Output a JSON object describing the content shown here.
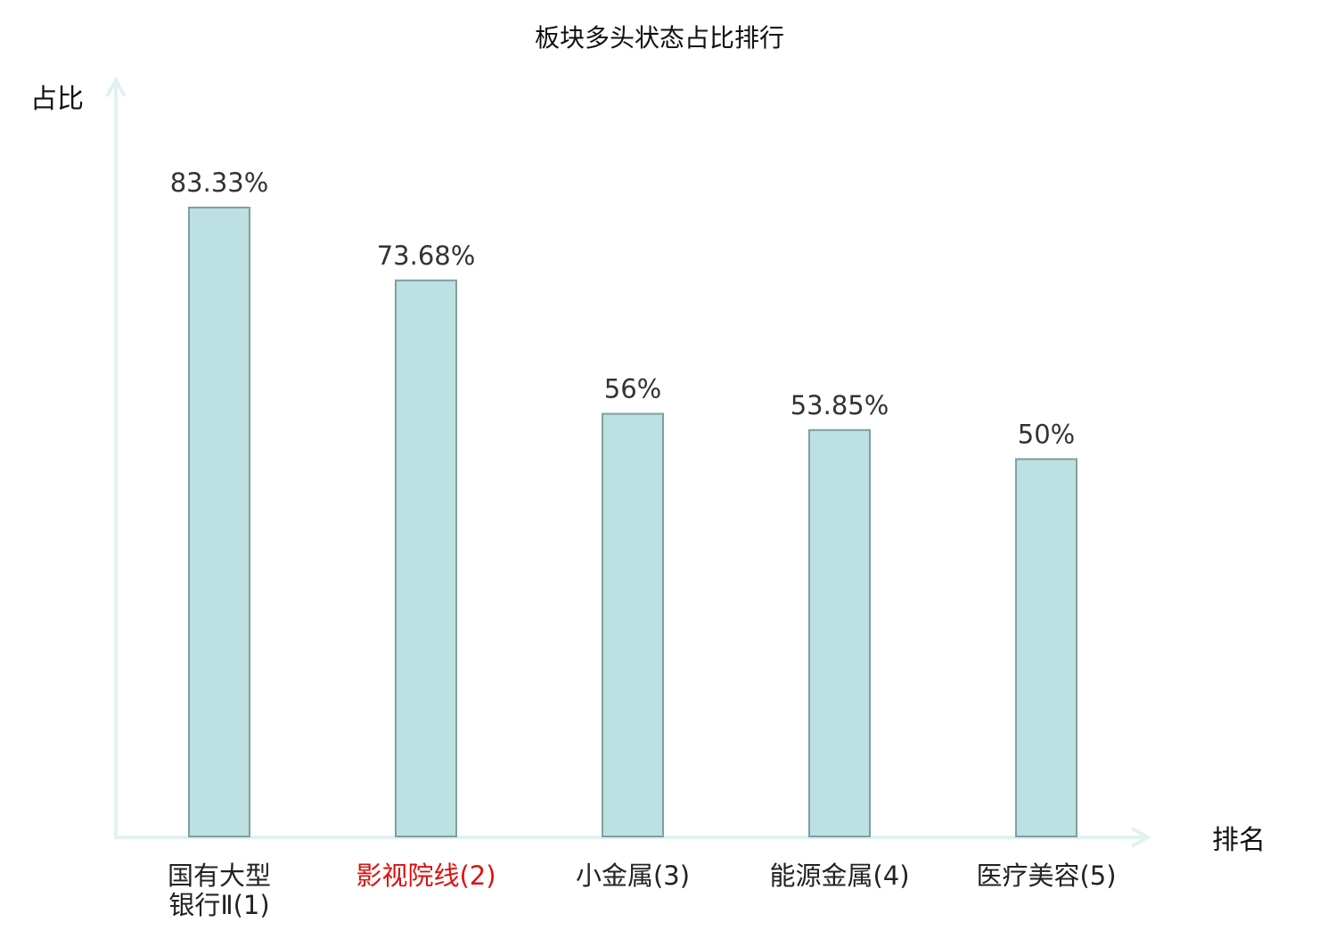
{
  "chart_data": {
    "type": "bar",
    "title": "板块多头状态占比排行",
    "ylabel": "占比",
    "xlabel": "排名",
    "ylim": [
      0,
      100
    ],
    "grid": false,
    "categories": [
      "国有大型银行Ⅱ(1)",
      "影视院线(2)",
      "小金属(3)",
      "能源金属(4)",
      "医疗美容(5)"
    ],
    "category_lines": [
      [
        "国有大型",
        "银行Ⅱ(1)"
      ],
      [
        "影视院线(2)"
      ],
      [
        "小金属(3)"
      ],
      [
        "能源金属(4)"
      ],
      [
        "医疗美容(5)"
      ]
    ],
    "highlighted_category_index": 1,
    "values": [
      83.33,
      73.68,
      56,
      53.85,
      50
    ],
    "value_labels": [
      "83.33%",
      "73.68%",
      "56%",
      "53.85%",
      "50%"
    ],
    "colors": {
      "bar_fill": "#bde0e2",
      "bar_stroke": "#7f9fa1",
      "axis": "#dff2ef",
      "label_text": "#333333",
      "category_text": "#222222",
      "highlight_text": "#dd1111",
      "title_text": "#111111"
    }
  }
}
